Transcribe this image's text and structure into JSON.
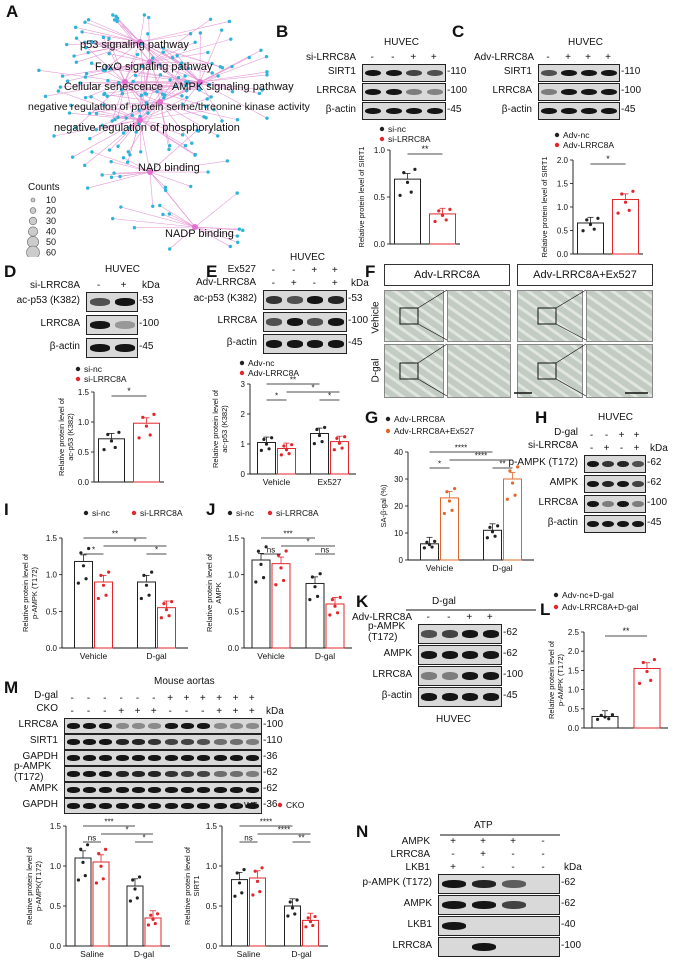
{
  "panelA": {
    "letter": "A",
    "terms": [
      "p53 signaling pathway",
      "FoxO signaling pathway",
      "Cellular senescence",
      "AMPK signaling pathway",
      "negative regulation of protein serine/threonine kinase activity",
      "negative regulation of phosphorylation",
      "NAD binding",
      "NADP binding"
    ],
    "legend_title": "Counts",
    "legend_values": [
      "10",
      "20",
      "30",
      "40",
      "50",
      "60"
    ]
  },
  "panelB": {
    "letter": "B",
    "cell": "HUVEC",
    "treat": "si-LRRC8A",
    "signs": [
      "-",
      "-",
      "+",
      "+"
    ],
    "rows": [
      "SIRT1",
      "LRRC8A",
      "β-actin"
    ],
    "kda": [
      "110",
      "100",
      "45"
    ],
    "kda_unit": "kDa",
    "chart": {
      "legend": [
        "si-nc",
        "si-LRRC8A"
      ],
      "ylabel": "Relative protein level of SIRT1",
      "ylim": [
        0,
        1.0
      ],
      "ticks": [
        "0.0",
        "0.5",
        "1.0"
      ],
      "values": [
        0.69,
        0.32
      ],
      "sig": "**"
    }
  },
  "panelC": {
    "letter": "C",
    "cell": "HUVEC",
    "treat": "Adv-LRRC8A",
    "signs": [
      "-",
      "+",
      "+",
      "+"
    ],
    "rows": [
      "SIRT1",
      "LRRC8A",
      "β-actin"
    ],
    "kda": [
      "110",
      "100",
      "45"
    ],
    "kda_unit": "kDa",
    "chart": {
      "legend": [
        "Adv-nc",
        "Adv-LRRC8A"
      ],
      "ylabel": "Relative protein level of SIRT1",
      "ylim": [
        0,
        2.0
      ],
      "ticks": [
        "0.0",
        "0.5",
        "1.0",
        "1.5",
        "2.0"
      ],
      "values": [
        0.66,
        1.16
      ],
      "sig": "*"
    }
  },
  "panelD": {
    "letter": "D",
    "cell": "HUVEC",
    "treat": "si-LRRC8A",
    "signs": [
      "-",
      "+"
    ],
    "rows": [
      "ac-p53 (K382)",
      "LRRC8A",
      "β-actin"
    ],
    "kda": [
      "53",
      "100",
      "45"
    ],
    "kda_unit": "kDa",
    "chart": {
      "legend": [
        "si-nc",
        "si-LRRC8A"
      ],
      "ylabel": "Relative protein level of ac-p53 (K382)",
      "ylim": [
        0,
        1.5
      ],
      "ticks": [
        "0.0",
        "0.5",
        "1.0",
        "1.5"
      ],
      "values": [
        0.72,
        0.98
      ],
      "sig": "*"
    }
  },
  "panelE": {
    "letter": "E",
    "cell": "HUVEC",
    "treat1": "Ex527",
    "signs1": [
      "-",
      "-",
      "+",
      "+"
    ],
    "treat2": "Adv-LRRC8A",
    "signs2": [
      "-",
      "+",
      "-",
      "+"
    ],
    "rows": [
      "ac-p53 (K382)",
      "LRRC8A",
      "β-actin"
    ],
    "kda": [
      "53",
      "100",
      "45"
    ],
    "kda_unit": "kDa",
    "chart": {
      "legend": [
        "Adv-nc",
        "Adv-LRRC8A"
      ],
      "ylabel": "Relative protein level of ac-p53 (K382)",
      "ylim": [
        0,
        3
      ],
      "ticks": [
        "0",
        "1",
        "2",
        "3"
      ],
      "groups": [
        "Vehicle",
        "Ex527"
      ],
      "values": [
        [
          1.05,
          0.85
        ],
        [
          1.35,
          1.08
        ]
      ],
      "sigs": [
        "*",
        "**",
        "*",
        "*"
      ]
    }
  },
  "panelF": {
    "letter": "F",
    "headers": [
      "Adv-LRRC8A",
      "Adv-LRRC8A+Ex527"
    ],
    "rows": [
      "Vehicle",
      "D-gal"
    ]
  },
  "panelG": {
    "letter": "G",
    "chart": {
      "legend": [
        "Adv-LRRC8A",
        "Adv-LRRC8A+Ex527"
      ],
      "ylabel": "SA-β-gal (%)",
      "ylim": [
        0,
        40
      ],
      "ticks": [
        "0",
        "10",
        "20",
        "30",
        "40"
      ],
      "groups": [
        "Vehicle",
        "D-gal"
      ],
      "values": [
        [
          6,
          23
        ],
        [
          11,
          30
        ]
      ],
      "sigs": [
        "*",
        "****",
        "****",
        "**"
      ]
    }
  },
  "panelH": {
    "letter": "H",
    "cell": "HUVEC",
    "treat1": "D-gal",
    "signs1": [
      "-",
      "-",
      "+",
      "+"
    ],
    "treat2": "si-LRRC8A",
    "signs2": [
      "-",
      "+",
      "-",
      "+"
    ],
    "rows": [
      "p-AMPK (T172)",
      "AMPK",
      "LRRC8A",
      "β-actin"
    ],
    "kda": [
      "62",
      "62",
      "100",
      "45"
    ],
    "kda_unit": "kDa"
  },
  "panelI": {
    "letter": "I",
    "chart": {
      "legend": [
        "si-nc",
        "si-LRRC8A"
      ],
      "ylabel": "Relative protein level of p-AMPK (T172)",
      "ylim": [
        0,
        1.5
      ],
      "ticks": [
        "0.0",
        "0.5",
        "1.0",
        "1.5"
      ],
      "groups": [
        "Vehicle",
        "D-gal"
      ],
      "values": [
        [
          1.18,
          0.9
        ],
        [
          0.9,
          0.55
        ]
      ],
      "sigs": [
        "*",
        "**",
        "*",
        "*"
      ]
    }
  },
  "panelJ": {
    "letter": "J",
    "chart": {
      "legend": [
        "si-nc",
        "si-LRRC8A"
      ],
      "ylabel": "Relative protein level of AMPK",
      "ylim": [
        0,
        1.5
      ],
      "ticks": [
        "0.0",
        "0.5",
        "1.0",
        "1.5"
      ],
      "groups": [
        "Vehicle",
        "D-gal"
      ],
      "values": [
        [
          1.2,
          1.15
        ],
        [
          0.88,
          0.6
        ]
      ],
      "sigs": [
        "ns",
        "***",
        "*",
        "ns"
      ]
    }
  },
  "panelK": {
    "letter": "K",
    "header": "D-gal",
    "cell": "HUVEC",
    "treat": "Adv-LRRC8A",
    "signs": [
      "-",
      "-",
      "+",
      "+"
    ],
    "rows": [
      "p-AMPK (T172)",
      "AMPK",
      "LRRC8A",
      "β-actin"
    ],
    "kda": [
      "62",
      "62",
      "100",
      "45"
    ]
  },
  "panelL": {
    "letter": "L",
    "chart": {
      "legend": [
        "Adv-nc+D-gal",
        "Adv-LRRC8A+D-gal"
      ],
      "ylabel": "Relative protein level of p-AMPK (T172)",
      "ylim": [
        0,
        2.5
      ],
      "ticks": [
        "0.0",
        "0.5",
        "1.0",
        "1.5",
        "2.0",
        "2.5"
      ],
      "values": [
        0.3,
        1.55
      ],
      "sig": "**"
    }
  },
  "panelM": {
    "letter": "M",
    "header": "Mouse aortas",
    "treat1": "D-gal",
    "signs1": [
      "-",
      "-",
      "-",
      "-",
      "-",
      "-",
      "+",
      "+",
      "+",
      "+",
      "+",
      "+"
    ],
    "treat2": "CKO",
    "signs2": [
      "-",
      "-",
      "-",
      "+",
      "+",
      "+",
      "-",
      "-",
      "-",
      "+",
      "+",
      "+"
    ],
    "rows": [
      "LRRC8A",
      "SIRT1",
      "GAPDH",
      "p-AMPK (T172)",
      "AMPK",
      "GAPDH"
    ],
    "kda": [
      "100",
      "110",
      "36",
      "62",
      "62",
      "36"
    ],
    "kda_unit": "kDa",
    "chart1": {
      "legend": [
        "WT",
        "CKO"
      ],
      "ylabel": "Relative protein level of p-AMPK(T172)",
      "ylim": [
        0,
        1.5
      ],
      "ticks": [
        "0.0",
        "0.5",
        "1.0",
        "1.5"
      ],
      "groups": [
        "Saline",
        "D-gal"
      ],
      "values": [
        [
          1.1,
          1.05
        ],
        [
          0.75,
          0.35
        ]
      ],
      "sigs": [
        "ns",
        "***",
        "*",
        "*"
      ]
    },
    "chart2": {
      "legend": [
        "WT",
        "CKO"
      ],
      "ylabel": "Relative protein level of SIRT1",
      "ylim": [
        0,
        1.5
      ],
      "ticks": [
        "0.0",
        "0.5",
        "1.0",
        "1.5"
      ],
      "groups": [
        "Saline",
        "D-gal"
      ],
      "values": [
        [
          0.83,
          0.85
        ],
        [
          0.5,
          0.32
        ]
      ],
      "sigs": [
        "ns",
        "****",
        "****",
        "**"
      ]
    }
  },
  "panelN": {
    "letter": "N",
    "header": "ATP",
    "treat1": "AMPK",
    "signs1": [
      "+",
      "+",
      "+",
      "-"
    ],
    "treat2": "LRRC8A",
    "signs2": [
      "-",
      "+",
      "-",
      "-"
    ],
    "treat3": "LKB1",
    "signs3": [
      "+",
      "-",
      "-",
      "-"
    ],
    "rows": [
      "p-AMPK (T172)",
      "AMPK",
      "LKB1",
      "LRRC8A"
    ],
    "kda": [
      "62",
      "62",
      "40",
      "100"
    ],
    "kda_unit": "kDa"
  },
  "colors": {
    "control": "#222222",
    "treated": "#e3262b",
    "orange": "#e2672a"
  }
}
